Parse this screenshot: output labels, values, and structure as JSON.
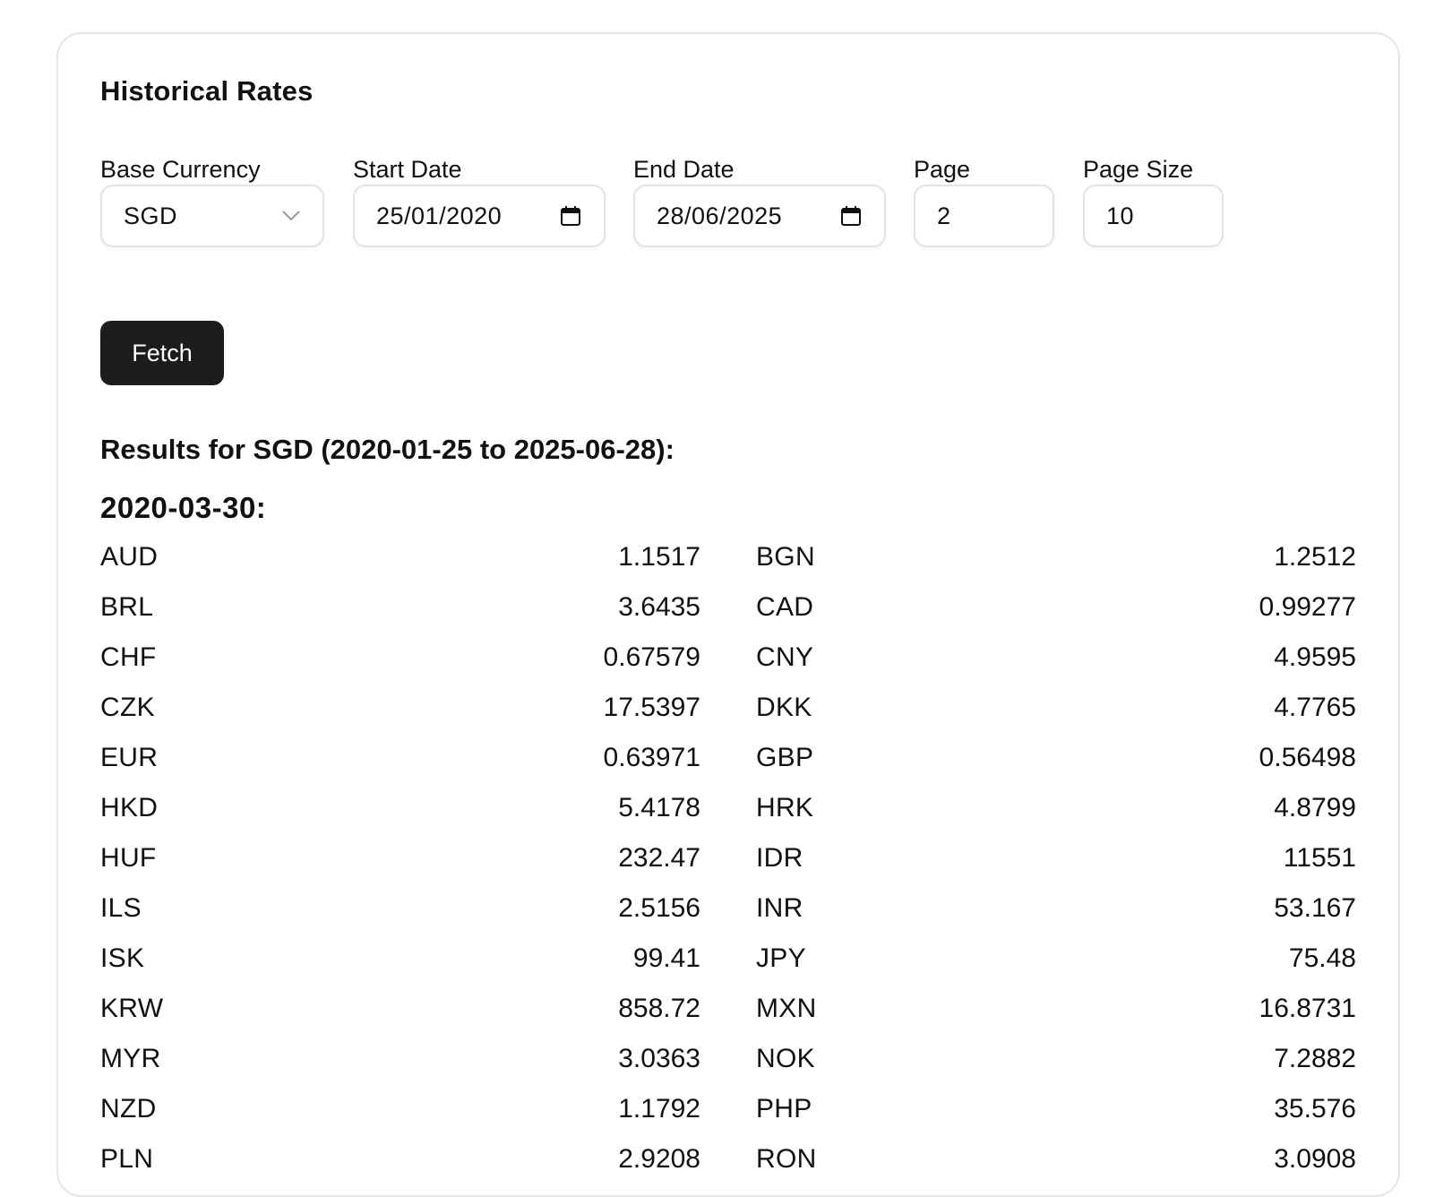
{
  "title": "Historical Rates",
  "form": {
    "base_currency": {
      "label": "Base Currency",
      "value": "SGD",
      "icon": "chevron-down-icon"
    },
    "start_date": {
      "label": "Start Date",
      "value": "25/01/2020",
      "icon": "calendar-icon"
    },
    "end_date": {
      "label": "End Date",
      "value": "28/06/2025",
      "icon": "calendar-icon"
    },
    "page": {
      "label": "Page",
      "value": "2"
    },
    "page_size": {
      "label": "Page Size",
      "value": "10"
    },
    "fetch_label": "Fetch"
  },
  "results": {
    "heading": "Results for SGD (2020-01-25 to 2025-06-28):",
    "date": "2020-03-30:",
    "rates": [
      {
        "code": "AUD",
        "value": "1.1517"
      },
      {
        "code": "BGN",
        "value": "1.2512"
      },
      {
        "code": "BRL",
        "value": "3.6435"
      },
      {
        "code": "CAD",
        "value": "0.99277"
      },
      {
        "code": "CHF",
        "value": "0.67579"
      },
      {
        "code": "CNY",
        "value": "4.9595"
      },
      {
        "code": "CZK",
        "value": "17.5397"
      },
      {
        "code": "DKK",
        "value": "4.7765"
      },
      {
        "code": "EUR",
        "value": "0.63971"
      },
      {
        "code": "GBP",
        "value": "0.56498"
      },
      {
        "code": "HKD",
        "value": "5.4178"
      },
      {
        "code": "HRK",
        "value": "4.8799"
      },
      {
        "code": "HUF",
        "value": "232.47"
      },
      {
        "code": "IDR",
        "value": "11551"
      },
      {
        "code": "ILS",
        "value": "2.5156"
      },
      {
        "code": "INR",
        "value": "53.167"
      },
      {
        "code": "ISK",
        "value": "99.41"
      },
      {
        "code": "JPY",
        "value": "75.48"
      },
      {
        "code": "KRW",
        "value": "858.72"
      },
      {
        "code": "MXN",
        "value": "16.8731"
      },
      {
        "code": "MYR",
        "value": "3.0363"
      },
      {
        "code": "NOK",
        "value": "7.2882"
      },
      {
        "code": "NZD",
        "value": "1.1792"
      },
      {
        "code": "PHP",
        "value": "35.576"
      },
      {
        "code": "PLN",
        "value": "2.9208"
      },
      {
        "code": "RON",
        "value": "3.0908"
      }
    ]
  },
  "colors": {
    "button_bg": "#1c1c1c",
    "button_text": "#ffffff",
    "border": "#e3e3e3",
    "text": "#111111"
  }
}
